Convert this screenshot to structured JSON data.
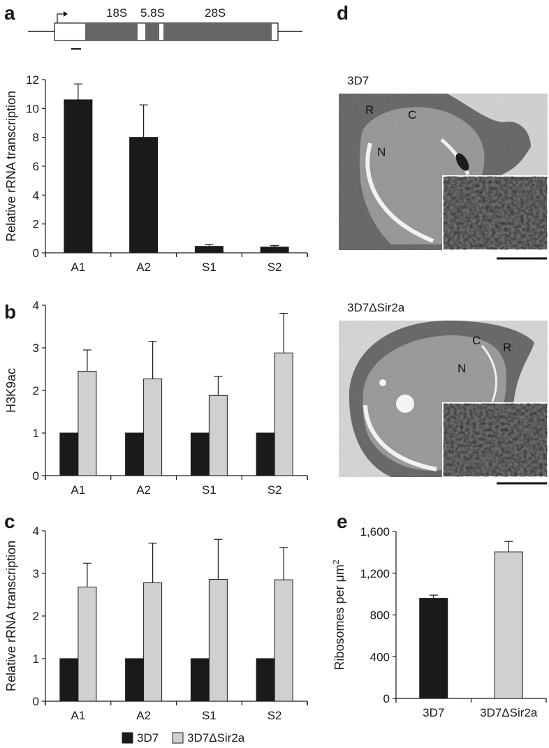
{
  "panels": {
    "a": "a",
    "b": "b",
    "c": "c",
    "d": "d",
    "e": "e"
  },
  "gene_map": {
    "labels": [
      "18S",
      "5.8S",
      "28S"
    ]
  },
  "micrographs": {
    "top": {
      "label": "3D7",
      "markers": [
        "R",
        "C",
        "N"
      ]
    },
    "bottom": {
      "label": "3D7ΔSir2a",
      "markers": [
        "C",
        "R",
        "N"
      ]
    }
  },
  "legend": {
    "items": [
      {
        "label": "3D7",
        "color": "#1a1a1a"
      },
      {
        "label": "3D7ΔSir2a",
        "color": "#d0d0d0"
      }
    ]
  },
  "chart_data": [
    {
      "id": "a",
      "type": "bar",
      "ylabel": "Relative rRNA transcription",
      "ylim": [
        0,
        12
      ],
      "yticks": [
        0,
        2,
        4,
        6,
        8,
        10,
        12
      ],
      "categories": [
        "A1",
        "A2",
        "S1",
        "S2"
      ],
      "series": [
        {
          "values": [
            10.6,
            8.0,
            0.45,
            0.4
          ],
          "errors": [
            1.1,
            2.25,
            0.12,
            0.1
          ],
          "color": "#1a1a1a"
        }
      ]
    },
    {
      "id": "b",
      "type": "bar",
      "ylabel": "H3K9ac",
      "ylim": [
        0,
        4
      ],
      "yticks": [
        0,
        1,
        2,
        3,
        4
      ],
      "categories": [
        "A1",
        "A2",
        "S1",
        "S2"
      ],
      "series": [
        {
          "name": "3D7",
          "values": [
            1,
            1,
            1,
            1
          ],
          "errors": [
            0,
            0,
            0,
            0
          ],
          "color": "#1a1a1a"
        },
        {
          "name": "3D7ΔSir2a",
          "values": [
            2.45,
            2.27,
            1.88,
            2.88
          ],
          "errors": [
            0.5,
            0.88,
            0.45,
            0.93
          ],
          "color": "#d0d0d0"
        }
      ]
    },
    {
      "id": "c",
      "type": "bar",
      "ylabel": "Relative rRNA transcription",
      "ylim": [
        0,
        4
      ],
      "yticks": [
        0,
        1,
        2,
        3,
        4
      ],
      "categories": [
        "A1",
        "A2",
        "S1",
        "S2"
      ],
      "series": [
        {
          "name": "3D7",
          "values": [
            1,
            1,
            1,
            1
          ],
          "errors": [
            0,
            0,
            0,
            0
          ],
          "color": "#1a1a1a"
        },
        {
          "name": "3D7ΔSir2a",
          "values": [
            2.68,
            2.78,
            2.86,
            2.85
          ],
          "errors": [
            0.56,
            0.93,
            0.94,
            0.76
          ],
          "color": "#d0d0d0"
        }
      ]
    },
    {
      "id": "e",
      "type": "bar",
      "ylabel": "Ribosomes per μm²",
      "ylim": [
        0,
        1600
      ],
      "yticks": [
        "0",
        "400",
        "800",
        "1,200",
        "1,600"
      ],
      "ytick_values": [
        0,
        400,
        800,
        1200,
        1600
      ],
      "categories": [
        "3D7",
        "3D7ΔSir2a"
      ],
      "series": [
        {
          "values": [
            960,
            1405
          ],
          "errors": [
            30,
            100
          ],
          "colors": [
            "#1a1a1a",
            "#d0d0d0"
          ]
        }
      ]
    }
  ]
}
